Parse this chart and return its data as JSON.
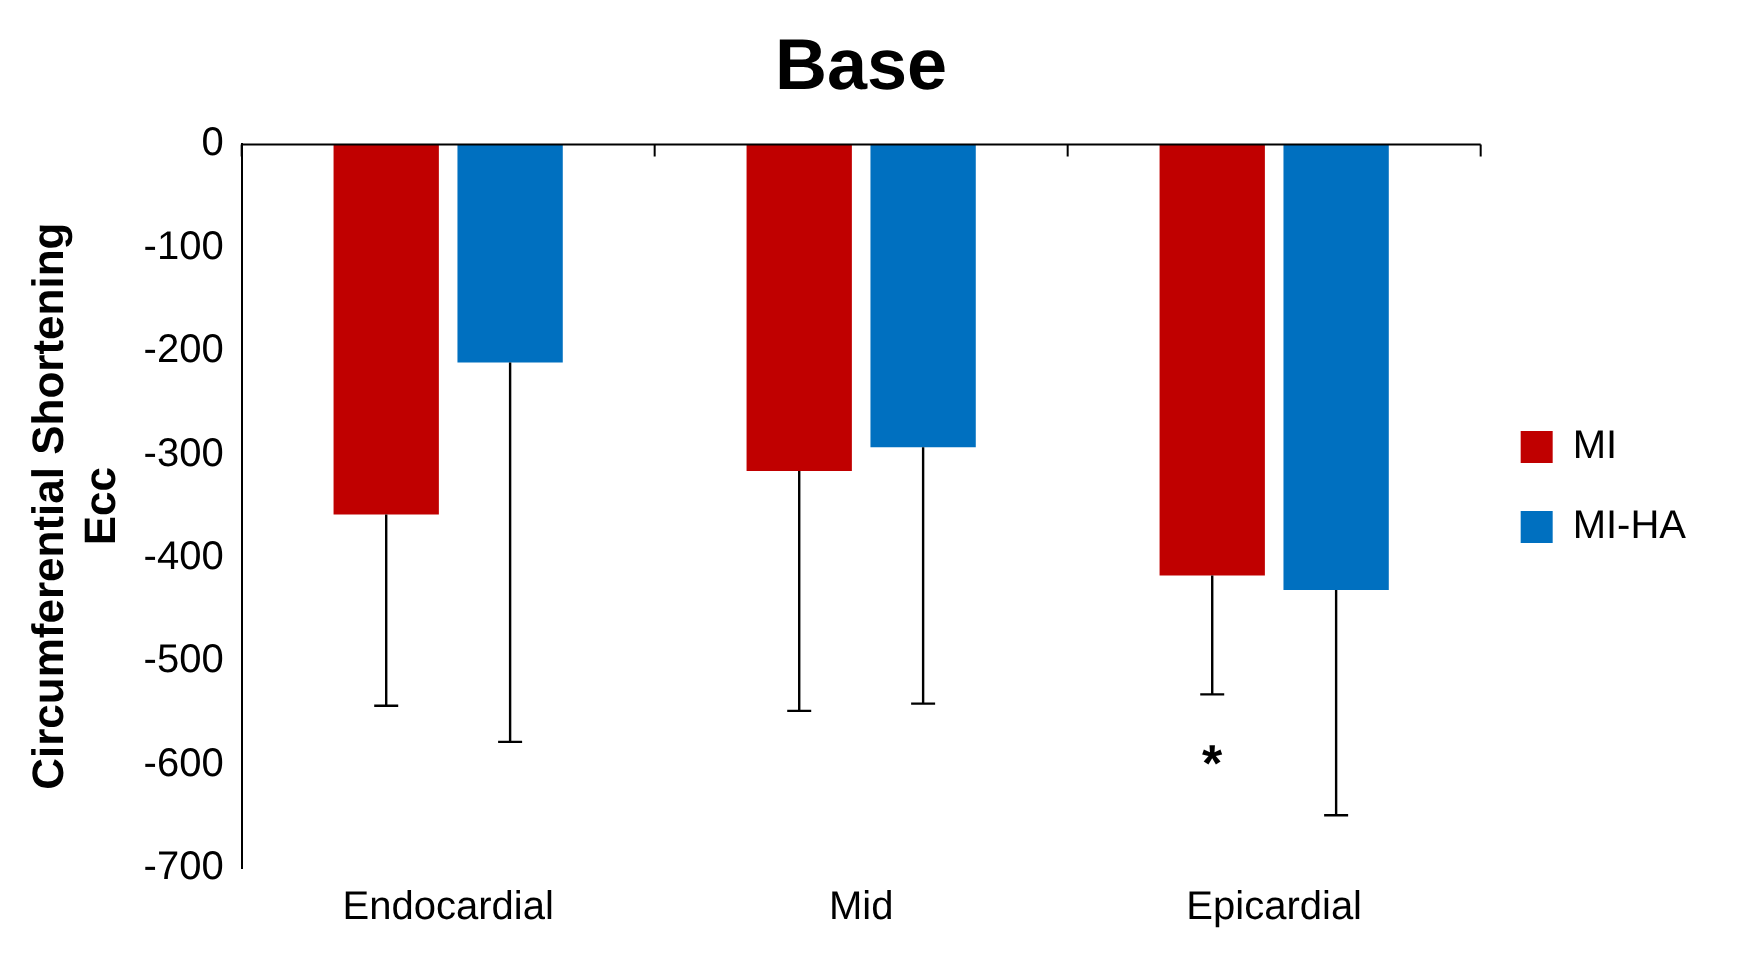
{
  "chart_data": {
    "type": "bar",
    "title": "Base",
    "ylabel": "Circumferential Shortening\nEcc",
    "categories": [
      "Endocardial",
      "Mid",
      "Epicardial"
    ],
    "series": [
      {
        "name": "MI",
        "color": "#c00000",
        "values": [
          -358,
          -316,
          -417
        ],
        "errors": [
          [
            -543,
            -358
          ],
          [
            -548,
            -316
          ],
          [
            -532,
            -417
          ]
        ]
      },
      {
        "name": "MI-HA",
        "color": "#0070c0",
        "values": [
          -211,
          -293,
          -431
        ],
        "errors": [
          [
            -578,
            -211
          ],
          [
            -541,
            -293
          ],
          [
            -649,
            -431
          ]
        ]
      }
    ],
    "ylim": [
      -700,
      0
    ],
    "yticks": [
      -700,
      -600,
      -500,
      -400,
      -300,
      -200,
      -100,
      0
    ],
    "grid": false,
    "legend": "right",
    "annotations": [
      "*"
    ]
  }
}
